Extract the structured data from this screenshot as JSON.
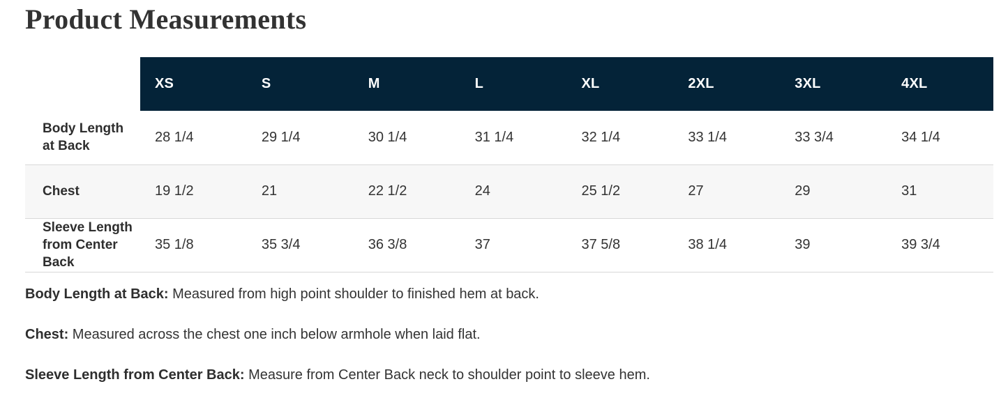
{
  "page": {
    "title": "Product Measurements"
  },
  "table": {
    "columns": [
      "XS",
      "S",
      "M",
      "L",
      "XL",
      "2XL",
      "3XL",
      "4XL"
    ],
    "rows": [
      {
        "label": "Body Length at Back",
        "values": [
          "28 1/4",
          "29 1/4",
          "30 1/4",
          "31 1/4",
          "32 1/4",
          "33 1/4",
          "33 3/4",
          "34 1/4"
        ]
      },
      {
        "label": "Chest",
        "values": [
          "19 1/2",
          "21",
          "22 1/2",
          "24",
          "25 1/2",
          "27",
          "29",
          "31"
        ]
      },
      {
        "label": "Sleeve Length from Center Back",
        "values": [
          "35 1/8",
          "35 3/4",
          "36 3/8",
          "37",
          "37 5/8",
          "38 1/4",
          "39",
          "39 3/4"
        ]
      }
    ]
  },
  "footnotes": [
    {
      "term": "Body Length at Back:",
      "definition": "Measured from high point shoulder to finished hem at back."
    },
    {
      "term": "Chest:",
      "definition": "Measured across the chest one inch below armhole when laid flat."
    },
    {
      "term": "Sleeve Length from Center Back:",
      "definition": "Measure from Center Back neck to shoulder point to sleeve hem."
    }
  ],
  "colors": {
    "header_bg": "#042338",
    "header_text": "#ffffff",
    "row_alt_bg": "#f7f7f7",
    "border": "#d8d8d8",
    "body_text": "#333333",
    "label_text": "#2e2e2e",
    "title_text": "#323232"
  }
}
